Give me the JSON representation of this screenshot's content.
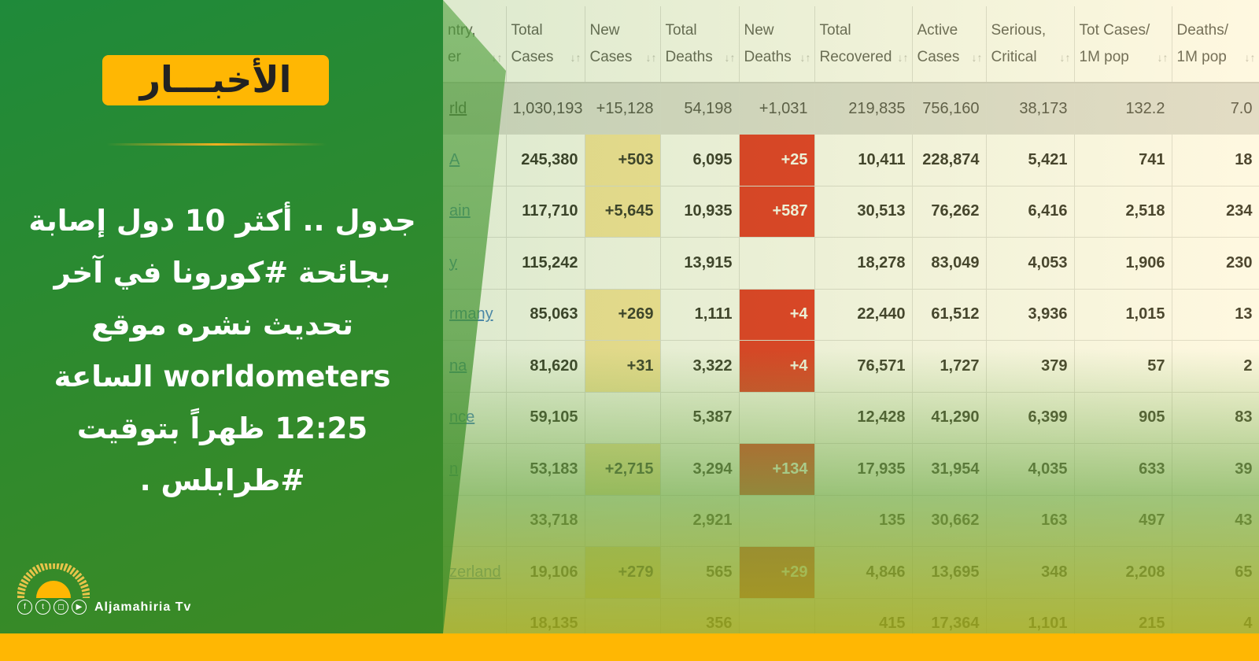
{
  "badge": "الأخبـــار",
  "headline": "جدول .. أكثر 10 دول إصابة بجائحة #كورونا في آخر تحديث نشره موقع worldometers الساعة 12:25 ظهراً بتوقيت #طرابلس .",
  "brand": "Aljamahiria Tv",
  "social_icons": [
    "facebook-icon",
    "twitter-icon",
    "instagram-icon",
    "youtube-icon"
  ],
  "colors": {
    "green": "#2e8a2e",
    "yellow": "#ffb703",
    "new_deaths": "#e4241b",
    "new_cases": "#fbe5a0"
  },
  "table": {
    "headers": [
      [
        "ntry,",
        "er"
      ],
      [
        "Total",
        "Cases"
      ],
      [
        "New",
        "Cases"
      ],
      [
        "Total",
        "Deaths"
      ],
      [
        "New",
        "Deaths"
      ],
      [
        "Total",
        "Recovered"
      ],
      [
        "Active",
        "Cases"
      ],
      [
        "Serious,",
        "Critical"
      ],
      [
        "Tot Cases/",
        "1M pop"
      ],
      [
        "Deaths/",
        "1M pop"
      ]
    ],
    "rows": [
      [
        "rld",
        "1,030,193",
        "+15,128",
        "54,198",
        "+1,031",
        "219,835",
        "756,160",
        "38,173",
        "132.2",
        "7.0"
      ],
      [
        "A",
        "245,380",
        "+503",
        "6,095",
        "+25",
        "10,411",
        "228,874",
        "5,421",
        "741",
        "18"
      ],
      [
        "ain",
        "117,710",
        "+5,645",
        "10,935",
        "+587",
        "30,513",
        "76,262",
        "6,416",
        "2,518",
        "234"
      ],
      [
        "y",
        "115,242",
        "",
        "13,915",
        "",
        "18,278",
        "83,049",
        "4,053",
        "1,906",
        "230"
      ],
      [
        "rmany",
        "85,063",
        "+269",
        "1,111",
        "+4",
        "22,440",
        "61,512",
        "3,936",
        "1,015",
        "13"
      ],
      [
        "na",
        "81,620",
        "+31",
        "3,322",
        "+4",
        "76,571",
        "1,727",
        "379",
        "57",
        "2"
      ],
      [
        "nce",
        "59,105",
        "",
        "5,387",
        "",
        "12,428",
        "41,290",
        "6,399",
        "905",
        "83"
      ],
      [
        "n",
        "53,183",
        "+2,715",
        "3,294",
        "+134",
        "17,935",
        "31,954",
        "4,035",
        "633",
        "39"
      ],
      [
        "",
        "33,718",
        "",
        "2,921",
        "",
        "135",
        "30,662",
        "163",
        "497",
        "43"
      ],
      [
        "zerland",
        "19,106",
        "+279",
        "565",
        "+29",
        "4,846",
        "13,695",
        "348",
        "2,208",
        "65"
      ],
      [
        "",
        "18,135",
        "",
        "356",
        "",
        "415",
        "17,364",
        "1,101",
        "215",
        "4"
      ]
    ]
  }
}
